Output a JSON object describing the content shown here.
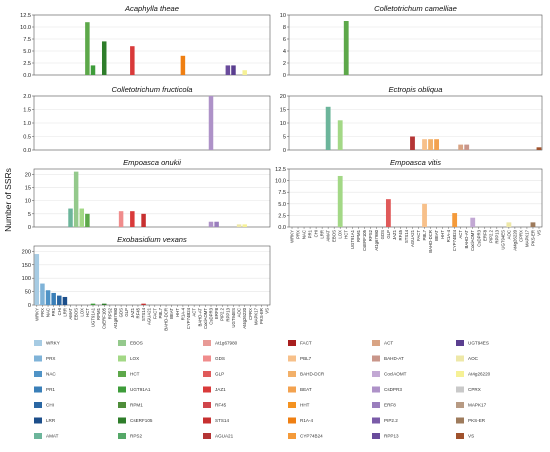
{
  "ylabel": "Number of SSRs",
  "categories": [
    "WRKY",
    "PRX",
    "NAC",
    "PR1",
    "CHI",
    "LRR",
    "AMAT",
    "EBOS",
    "LOX",
    "HCT",
    "UGT91A1",
    "RPM1",
    "CsERF105",
    "RPS2",
    "At1g67980",
    "GDS",
    "GLP",
    "JAZ1",
    "RF45",
    "STS14",
    "AGUA21",
    "FACT",
    "PBL7",
    "BAHD-DCR",
    "BEAT",
    "HHT",
    "R1A-4",
    "CYP74B24",
    "ACT",
    "BAHD-AT",
    "CoclAOMT",
    "CsDPR3",
    "ERF8",
    "PIP2.2",
    "RPP13",
    "UGT94ES",
    "AOC",
    "At4g26220",
    "CPRX",
    "MAPK17",
    "PKS-ER",
    "VS"
  ],
  "colors": [
    "#a6cbe3",
    "#7fb3d8",
    "#4f93c6",
    "#3a7fb8",
    "#2a67a3",
    "#1c4e8a",
    "#6cb59b",
    "#94c98c",
    "#a3d886",
    "#5da84a",
    "#3e9c3a",
    "#4e8d39",
    "#2e7d2a",
    "#55a868",
    "#e89a96",
    "#f08c8c",
    "#e05a5a",
    "#d93a3a",
    "#d0454a",
    "#c73030",
    "#b53535",
    "#a81f1f",
    "#f7c08a",
    "#f2b069",
    "#f3a24f",
    "#f49220",
    "#ef7f12",
    "#f49a3a",
    "#d9a484",
    "#c9968a",
    "#c2a8d4",
    "#ae92c8",
    "#9a7ebd",
    "#7a5ba8",
    "#6a4c9c",
    "#5a3e8f",
    "#eee8a8",
    "#f6f196",
    "#c9c9c9",
    "#b79a83",
    "#9e7b5c",
    "#a0522d"
  ],
  "panels": [
    {
      "title": "Acaphylla theae",
      "ylim": [
        0,
        12.5
      ],
      "yticks": [
        "0.0",
        "2.5",
        "5.0",
        "7.5",
        "10.0",
        "12.5"
      ],
      "bars": [
        {
          "category": "HCT",
          "value": 11
        },
        {
          "category": "UGT91A1",
          "value": 2
        },
        {
          "category": "CsERF105",
          "value": 7
        },
        {
          "category": "JAZ1",
          "value": 6
        },
        {
          "category": "R1A-4",
          "value": 4
        },
        {
          "category": "RPP13",
          "value": 2
        },
        {
          "category": "UGT94ES",
          "value": 2
        },
        {
          "category": "At4g26220",
          "value": 1
        }
      ]
    },
    {
      "title": "Colletotrichum camelliae",
      "ylim": [
        0,
        10
      ],
      "yticks": [
        "0",
        "2",
        "4",
        "6",
        "8",
        "10"
      ],
      "bars": [
        {
          "category": "HCT",
          "value": 9
        }
      ]
    },
    {
      "title": "Colletotrichum fructicola",
      "ylim": [
        0,
        2
      ],
      "yticks": [
        "0.0",
        "0.5",
        "1.0",
        "1.5",
        "2.0"
      ],
      "bars": [
        {
          "category": "CsDPR3",
          "value": 2
        }
      ]
    },
    {
      "title": "Ectropis obliqua",
      "ylim": [
        0,
        20
      ],
      "yticks": [
        "0",
        "5",
        "10",
        "15",
        "20"
      ],
      "bars": [
        {
          "category": "AMAT",
          "value": 16
        },
        {
          "category": "LOX",
          "value": 11
        },
        {
          "category": "AGUA21",
          "value": 5
        },
        {
          "category": "PBL7",
          "value": 4
        },
        {
          "category": "BAHD-DCR",
          "value": 4
        },
        {
          "category": "BEAT",
          "value": 4
        },
        {
          "category": "ACT",
          "value": 2
        },
        {
          "category": "BAHD-AT",
          "value": 2
        },
        {
          "category": "VS",
          "value": 1
        }
      ]
    },
    {
      "title": "Empoasca onukii",
      "ylim": [
        0,
        22
      ],
      "yticks": [
        "0",
        "5",
        "10",
        "15",
        "20"
      ],
      "bars": [
        {
          "category": "AMAT",
          "value": 7
        },
        {
          "category": "EBOS",
          "value": 21
        },
        {
          "category": "LOX",
          "value": 7
        },
        {
          "category": "HCT",
          "value": 5
        },
        {
          "category": "GDS",
          "value": 6
        },
        {
          "category": "JAZ1",
          "value": 6
        },
        {
          "category": "STS14",
          "value": 5
        },
        {
          "category": "CsDPR3",
          "value": 2
        },
        {
          "category": "ERF8",
          "value": 2
        },
        {
          "category": "AOC",
          "value": 1
        },
        {
          "category": "At4g26220",
          "value": 1
        }
      ]
    },
    {
      "title": "Empoasca vitis",
      "ylim": [
        0,
        12.5
      ],
      "yticks": [
        "0.0",
        "2.5",
        "5.0",
        "7.5",
        "10.0",
        "12.5"
      ],
      "bars": [
        {
          "category": "LOX",
          "value": 11
        },
        {
          "category": "GLP",
          "value": 6
        },
        {
          "category": "PBL7",
          "value": 5
        },
        {
          "category": "CYP74B24",
          "value": 3
        },
        {
          "category": "CoclAOMT",
          "value": 2
        },
        {
          "category": "AOC",
          "value": 1
        },
        {
          "category": "PKS-ER",
          "value": 1
        }
      ]
    },
    {
      "title": "Exobasidium vexans",
      "ylim": [
        0,
        220
      ],
      "yticks": [
        "0",
        "50",
        "100",
        "150",
        "200"
      ],
      "bars": [
        {
          "category": "WRKY",
          "value": 190
        },
        {
          "category": "PRX",
          "value": 80
        },
        {
          "category": "NAC",
          "value": 55
        },
        {
          "category": "PR1",
          "value": 45
        },
        {
          "category": "CHI",
          "value": 35
        },
        {
          "category": "LRR",
          "value": 30
        },
        {
          "category": "UGT91A1",
          "value": 5
        },
        {
          "category": "CsERF105",
          "value": 5
        },
        {
          "category": "STS14",
          "value": 5
        }
      ]
    }
  ]
}
